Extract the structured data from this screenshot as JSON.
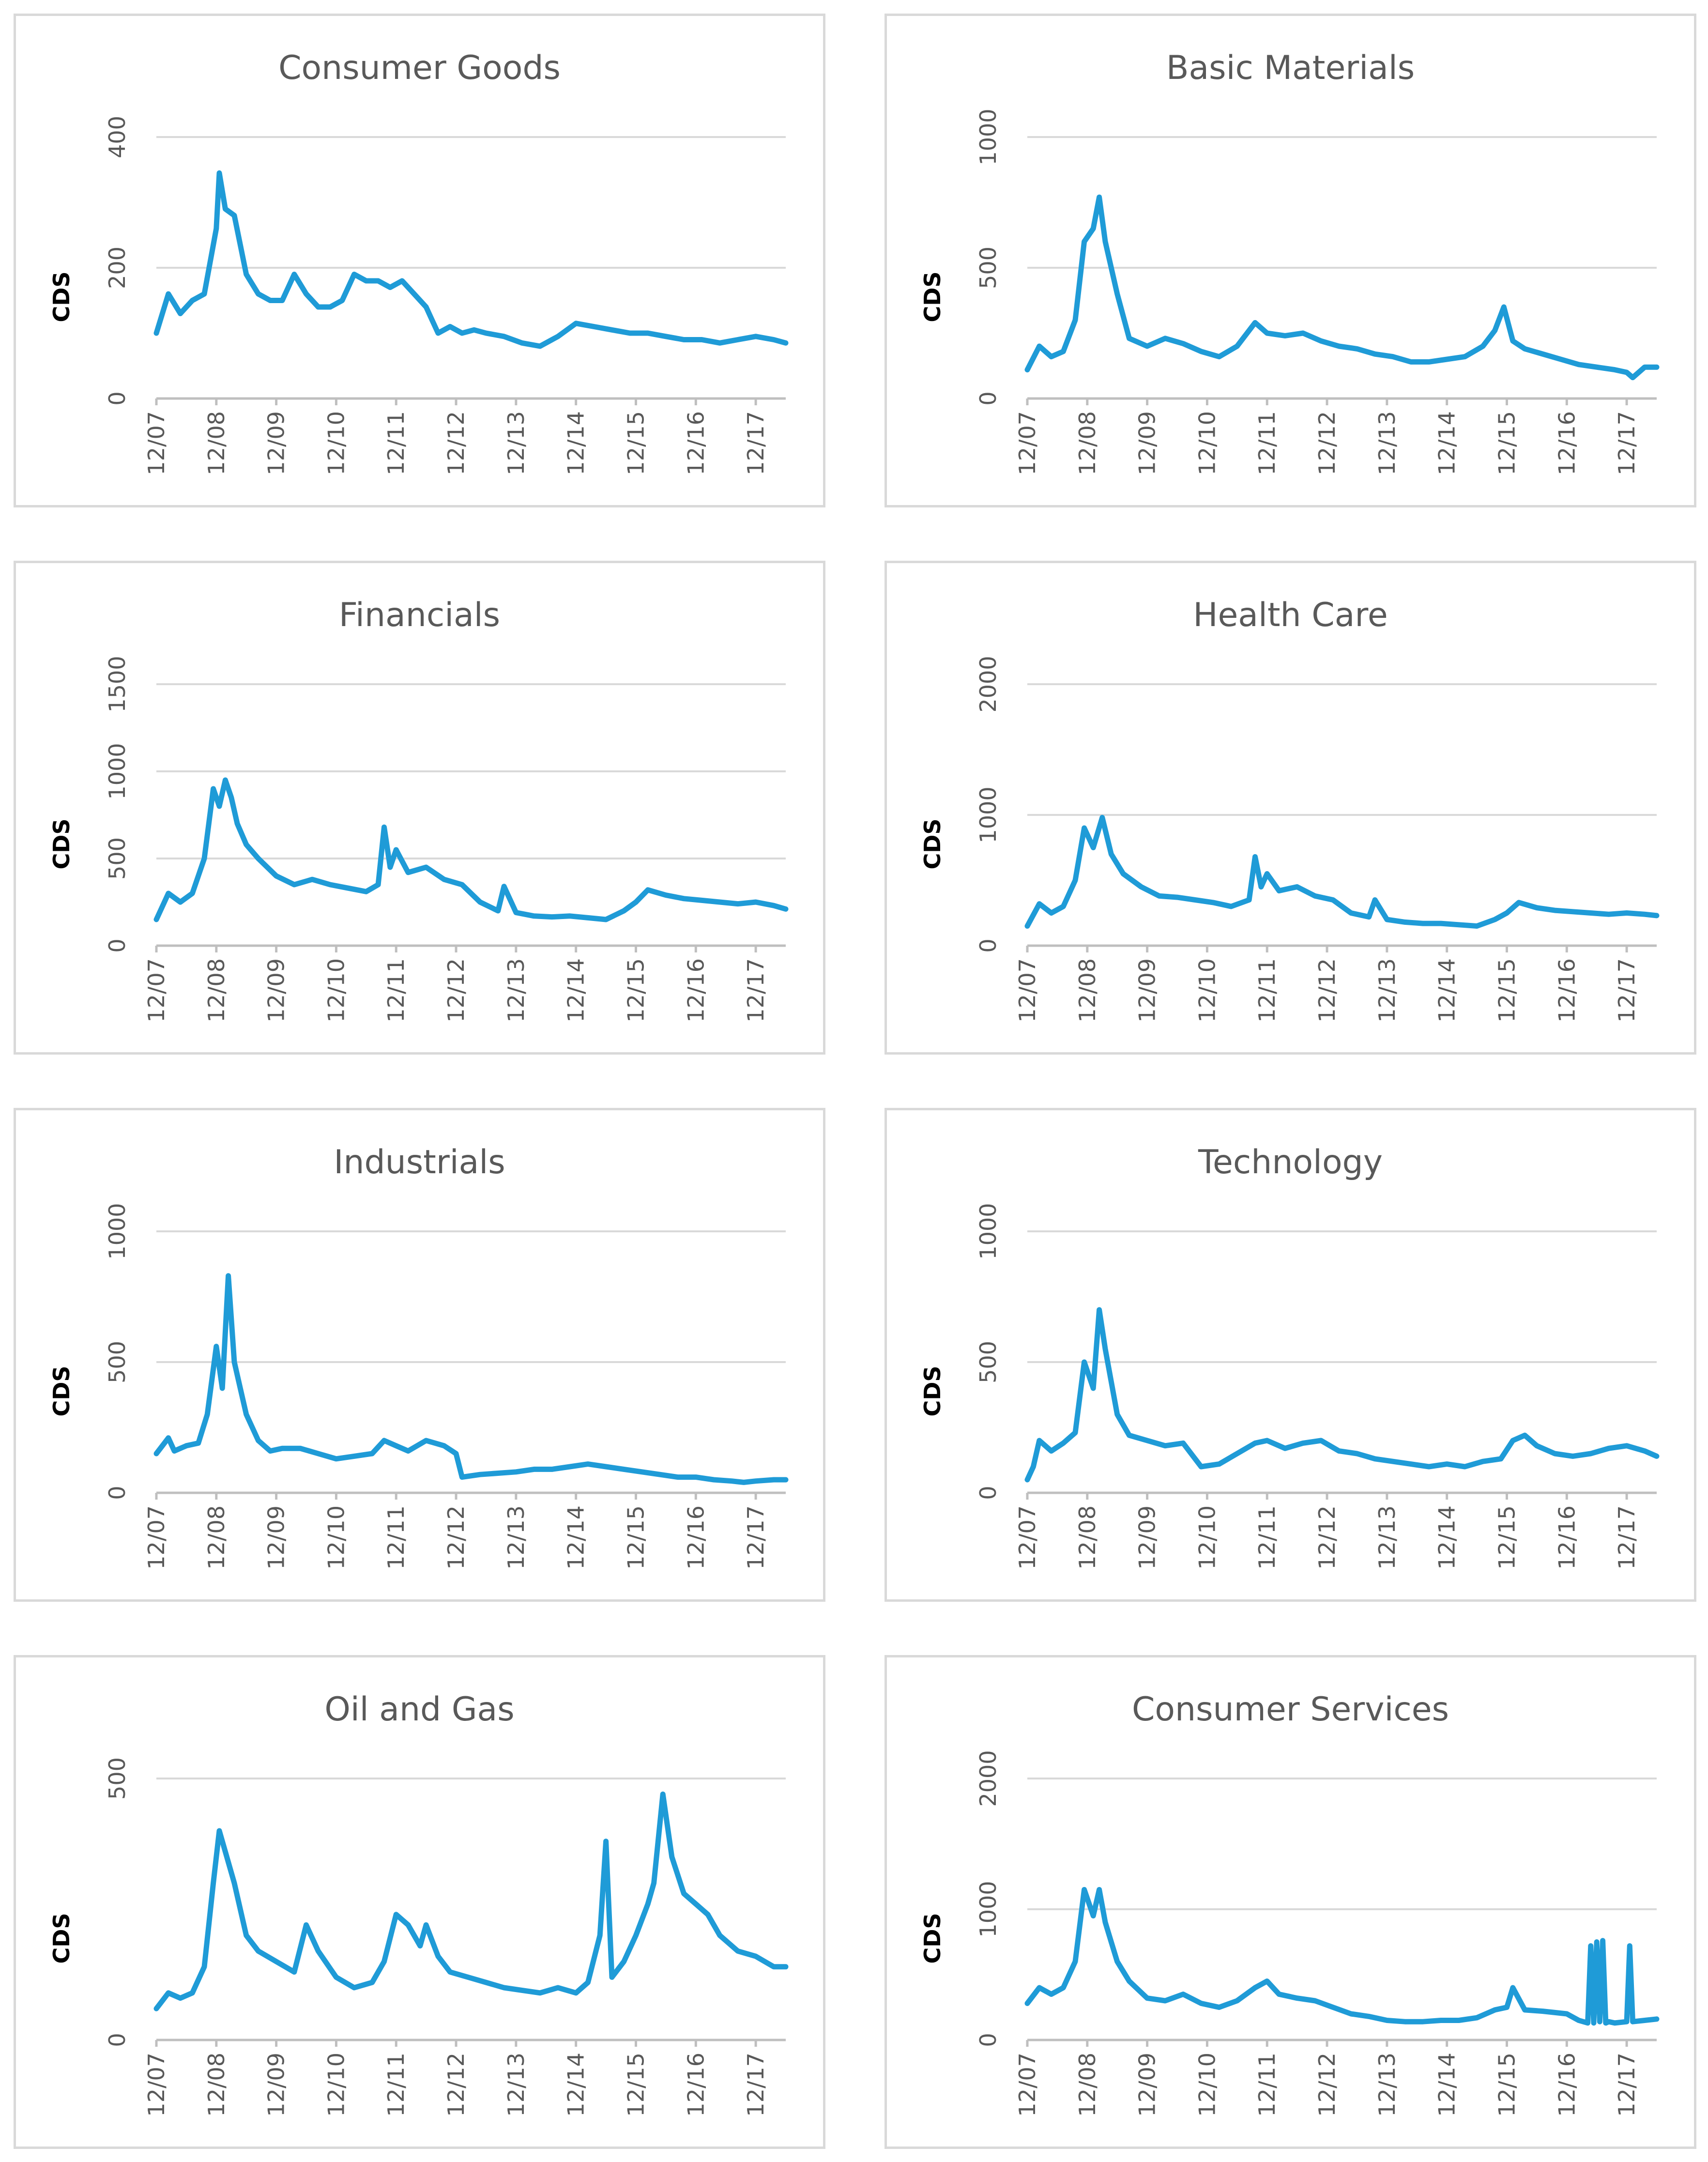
{
  "chart_data": [
    {
      "type": "line",
      "title": "Consumer Goods",
      "ylabel": "CDS",
      "xlabel": "",
      "ylim": [
        0,
        400
      ],
      "yticks": [
        "0",
        "200",
        "400"
      ],
      "xticks": [
        "12/07",
        "12/08",
        "12/09",
        "12/10",
        "12/11",
        "12/12",
        "12/13",
        "12/14",
        "12/15",
        "12/16",
        "12/17"
      ],
      "series": [
        {
          "name": "CDS",
          "x": [
            0,
            0.2,
            0.4,
            0.6,
            0.8,
            1.0,
            1.05,
            1.15,
            1.3,
            1.5,
            1.7,
            1.9,
            2.1,
            2.3,
            2.5,
            2.7,
            2.9,
            3.1,
            3.3,
            3.5,
            3.7,
            3.9,
            4.1,
            4.3,
            4.5,
            4.7,
            4.9,
            5.1,
            5.3,
            5.5,
            5.8,
            6.1,
            6.4,
            6.7,
            7.0,
            7.3,
            7.6,
            7.9,
            8.2,
            8.5,
            8.8,
            9.1,
            9.4,
            9.7,
            10.0,
            10.3,
            10.5
          ],
          "values": [
            100,
            160,
            130,
            150,
            160,
            260,
            345,
            290,
            280,
            190,
            160,
            150,
            150,
            190,
            160,
            140,
            140,
            150,
            190,
            180,
            180,
            170,
            180,
            160,
            140,
            100,
            110,
            100,
            105,
            100,
            95,
            85,
            80,
            95,
            115,
            110,
            105,
            100,
            100,
            95,
            90,
            90,
            85,
            90,
            95,
            90,
            85
          ]
        }
      ]
    },
    {
      "type": "line",
      "title": "Basic Materials",
      "ylabel": "CDS",
      "xlabel": "",
      "ylim": [
        0,
        1000
      ],
      "yticks": [
        "0",
        "500",
        "1000"
      ],
      "xticks": [
        "12/07",
        "12/08",
        "12/09",
        "12/10",
        "12/11",
        "12/12",
        "12/13",
        "12/14",
        "12/15",
        "12/16",
        "12/17"
      ],
      "series": [
        {
          "name": "CDS",
          "x": [
            0,
            0.2,
            0.4,
            0.6,
            0.8,
            0.95,
            1.1,
            1.2,
            1.3,
            1.5,
            1.7,
            2.0,
            2.3,
            2.6,
            2.9,
            3.2,
            3.5,
            3.8,
            4.0,
            4.3,
            4.6,
            4.9,
            5.2,
            5.5,
            5.8,
            6.1,
            6.4,
            6.7,
            7.0,
            7.3,
            7.6,
            7.8,
            7.95,
            8.1,
            8.3,
            8.6,
            8.9,
            9.2,
            9.5,
            9.8,
            10.0,
            10.1,
            10.3,
            10.5
          ],
          "values": [
            110,
            200,
            160,
            180,
            300,
            600,
            650,
            770,
            600,
            400,
            230,
            200,
            230,
            210,
            180,
            160,
            200,
            290,
            250,
            240,
            250,
            220,
            200,
            190,
            170,
            160,
            140,
            140,
            150,
            160,
            200,
            260,
            350,
            220,
            190,
            170,
            150,
            130,
            120,
            110,
            100,
            80,
            120,
            120
          ]
        }
      ]
    },
    {
      "type": "line",
      "title": "Financials",
      "ylabel": "CDS",
      "xlabel": "",
      "ylim": [
        0,
        1500
      ],
      "yticks": [
        "0",
        "500",
        "1000",
        "1500"
      ],
      "xticks": [
        "12/07",
        "12/08",
        "12/09",
        "12/10",
        "12/11",
        "12/12",
        "12/13",
        "12/14",
        "12/15",
        "12/16",
        "12/17"
      ],
      "series": [
        {
          "name": "CDS",
          "x": [
            0,
            0.2,
            0.4,
            0.6,
            0.8,
            0.95,
            1.05,
            1.15,
            1.25,
            1.35,
            1.5,
            1.7,
            2.0,
            2.3,
            2.6,
            2.9,
            3.2,
            3.5,
            3.7,
            3.8,
            3.9,
            4.0,
            4.2,
            4.5,
            4.8,
            5.1,
            5.4,
            5.7,
            5.8,
            6.0,
            6.3,
            6.6,
            6.9,
            7.2,
            7.5,
            7.8,
            8.0,
            8.2,
            8.5,
            8.8,
            9.1,
            9.4,
            9.7,
            10.0,
            10.3,
            10.5
          ],
          "values": [
            150,
            300,
            250,
            300,
            500,
            900,
            800,
            950,
            850,
            700,
            580,
            500,
            400,
            350,
            380,
            350,
            330,
            310,
            350,
            680,
            450,
            550,
            420,
            450,
            380,
            350,
            250,
            200,
            340,
            190,
            170,
            165,
            170,
            160,
            150,
            200,
            250,
            320,
            290,
            270,
            260,
            250,
            240,
            250,
            230,
            210
          ]
        }
      ]
    },
    {
      "type": "line",
      "title": "Health Care",
      "ylabel": "CDS",
      "xlabel": "",
      "ylim": [
        0,
        2000
      ],
      "yticks": [
        "0",
        "1000",
        "2000"
      ],
      "xticks": [
        "12/07",
        "12/08",
        "12/09",
        "12/10",
        "12/11",
        "12/12",
        "12/13",
        "12/14",
        "12/15",
        "12/16",
        "12/17"
      ],
      "series": [
        {
          "name": "CDS",
          "x": [
            0,
            0.2,
            0.4,
            0.6,
            0.8,
            0.95,
            1.1,
            1.25,
            1.4,
            1.6,
            1.9,
            2.2,
            2.5,
            2.8,
            3.1,
            3.4,
            3.7,
            3.8,
            3.9,
            4.0,
            4.2,
            4.5,
            4.8,
            5.1,
            5.4,
            5.7,
            5.8,
            6.0,
            6.3,
            6.6,
            6.9,
            7.2,
            7.5,
            7.8,
            8.0,
            8.2,
            8.5,
            8.8,
            9.1,
            9.4,
            9.7,
            10.0,
            10.3,
            10.5
          ],
          "values": [
            150,
            320,
            250,
            300,
            500,
            900,
            750,
            980,
            700,
            550,
            450,
            380,
            370,
            350,
            330,
            300,
            350,
            680,
            450,
            550,
            420,
            450,
            380,
            350,
            250,
            220,
            350,
            200,
            180,
            170,
            170,
            160,
            150,
            200,
            250,
            330,
            290,
            270,
            260,
            250,
            240,
            250,
            240,
            230
          ]
        }
      ]
    },
    {
      "type": "line",
      "title": "Industrials",
      "ylabel": "CDS",
      "xlabel": "",
      "ylim": [
        0,
        1000
      ],
      "yticks": [
        "0",
        "500",
        "1000"
      ],
      "xticks": [
        "12/07",
        "12/08",
        "12/09",
        "12/10",
        "12/11",
        "12/12",
        "12/13",
        "12/14",
        "12/15",
        "12/16",
        "12/17"
      ],
      "series": [
        {
          "name": "CDS",
          "x": [
            0,
            0.2,
            0.3,
            0.5,
            0.7,
            0.85,
            1.0,
            1.1,
            1.2,
            1.3,
            1.4,
            1.5,
            1.7,
            1.9,
            2.1,
            2.4,
            2.7,
            3.0,
            3.3,
            3.6,
            3.8,
            4.0,
            4.2,
            4.5,
            4.8,
            5.0,
            5.1,
            5.4,
            5.7,
            6.0,
            6.3,
            6.6,
            6.9,
            7.2,
            7.5,
            7.8,
            8.1,
            8.4,
            8.7,
            9.0,
            9.3,
            9.6,
            9.8,
            10.0,
            10.3,
            10.5
          ],
          "values": [
            150,
            210,
            160,
            180,
            190,
            300,
            560,
            400,
            830,
            500,
            400,
            300,
            200,
            160,
            170,
            170,
            150,
            130,
            140,
            150,
            200,
            180,
            160,
            200,
            180,
            150,
            60,
            70,
            75,
            80,
            90,
            90,
            100,
            110,
            100,
            90,
            80,
            70,
            60,
            60,
            50,
            45,
            40,
            45,
            50,
            50
          ]
        }
      ]
    },
    {
      "type": "line",
      "title": "Technology",
      "ylabel": "CDS",
      "xlabel": "",
      "ylim": [
        0,
        1000
      ],
      "yticks": [
        "0",
        "500",
        "1000"
      ],
      "xticks": [
        "12/07",
        "12/08",
        "12/09",
        "12/10",
        "12/11",
        "12/12",
        "12/13",
        "12/14",
        "12/15",
        "12/16",
        "12/17"
      ],
      "series": [
        {
          "name": "CDS",
          "x": [
            0,
            0.1,
            0.2,
            0.4,
            0.6,
            0.8,
            0.95,
            1.1,
            1.2,
            1.3,
            1.5,
            1.7,
            2.0,
            2.3,
            2.6,
            2.9,
            3.2,
            3.5,
            3.8,
            4.0,
            4.3,
            4.6,
            4.9,
            5.2,
            5.5,
            5.8,
            6.1,
            6.4,
            6.7,
            7.0,
            7.3,
            7.6,
            7.9,
            8.1,
            8.3,
            8.5,
            8.8,
            9.1,
            9.4,
            9.7,
            10.0,
            10.3,
            10.5
          ],
          "values": [
            50,
            100,
            200,
            160,
            190,
            230,
            500,
            400,
            700,
            550,
            300,
            220,
            200,
            180,
            190,
            100,
            110,
            150,
            190,
            200,
            170,
            190,
            200,
            160,
            150,
            130,
            120,
            110,
            100,
            110,
            100,
            120,
            130,
            200,
            220,
            180,
            150,
            140,
            150,
            170,
            180,
            160,
            140
          ]
        }
      ]
    },
    {
      "type": "line",
      "title": "Oil and Gas",
      "ylabel": "CDS",
      "xlabel": "",
      "ylim": [
        0,
        500
      ],
      "yticks": [
        "0",
        "500"
      ],
      "xticks": [
        "12/07",
        "12/08",
        "12/09",
        "12/10",
        "12/11",
        "12/12",
        "12/13",
        "12/14",
        "12/15",
        "12/16",
        "12/17"
      ],
      "series": [
        {
          "name": "CDS",
          "x": [
            0,
            0.2,
            0.4,
            0.6,
            0.8,
            0.95,
            1.05,
            1.15,
            1.3,
            1.5,
            1.7,
            2.0,
            2.3,
            2.5,
            2.7,
            3.0,
            3.3,
            3.6,
            3.8,
            4.0,
            4.2,
            4.4,
            4.5,
            4.7,
            4.9,
            5.2,
            5.5,
            5.8,
            6.1,
            6.4,
            6.7,
            7.0,
            7.2,
            7.4,
            7.5,
            7.6,
            7.8,
            8.0,
            8.2,
            8.3,
            8.45,
            8.6,
            8.8,
            9.0,
            9.2,
            9.4,
            9.7,
            10.0,
            10.3,
            10.5
          ],
          "values": [
            60,
            90,
            80,
            90,
            140,
            300,
            400,
            360,
            300,
            200,
            170,
            150,
            130,
            220,
            170,
            120,
            100,
            110,
            150,
            240,
            220,
            180,
            220,
            160,
            130,
            120,
            110,
            100,
            95,
            90,
            100,
            90,
            110,
            200,
            380,
            120,
            150,
            200,
            260,
            300,
            470,
            350,
            280,
            260,
            240,
            200,
            170,
            160,
            140,
            140
          ]
        }
      ]
    },
    {
      "type": "line",
      "title": "Consumer Services",
      "ylabel": "CDS",
      "xlabel": "",
      "ylim": [
        0,
        2000
      ],
      "yticks": [
        "0",
        "1000",
        "2000"
      ],
      "xticks": [
        "12/07",
        "12/08",
        "12/09",
        "12/10",
        "12/11",
        "12/12",
        "12/13",
        "12/14",
        "12/15",
        "12/16",
        "12/17"
      ],
      "series": [
        {
          "name": "CDS",
          "x": [
            0,
            0.2,
            0.4,
            0.6,
            0.8,
            0.95,
            1.1,
            1.2,
            1.3,
            1.4,
            1.5,
            1.7,
            2.0,
            2.3,
            2.6,
            2.9,
            3.2,
            3.5,
            3.8,
            4.0,
            4.2,
            4.5,
            4.8,
            5.1,
            5.4,
            5.7,
            6.0,
            6.3,
            6.6,
            6.9,
            7.2,
            7.5,
            7.8,
            8.0,
            8.1,
            8.3,
            8.6,
            9.0,
            9.2,
            9.35,
            9.4,
            9.45,
            9.5,
            9.55,
            9.6,
            9.65,
            9.7,
            9.8,
            10.0,
            10.05,
            10.1,
            10.3,
            10.5
          ],
          "values": [
            280,
            400,
            350,
            400,
            600,
            1150,
            950,
            1150,
            900,
            750,
            600,
            450,
            320,
            300,
            350,
            280,
            250,
            300,
            400,
            450,
            350,
            320,
            300,
            250,
            200,
            180,
            150,
            140,
            140,
            150,
            150,
            170,
            230,
            250,
            400,
            230,
            220,
            200,
            150,
            130,
            720,
            130,
            750,
            140,
            760,
            130,
            140,
            130,
            140,
            720,
            140,
            150,
            160
          ]
        }
      ]
    }
  ]
}
